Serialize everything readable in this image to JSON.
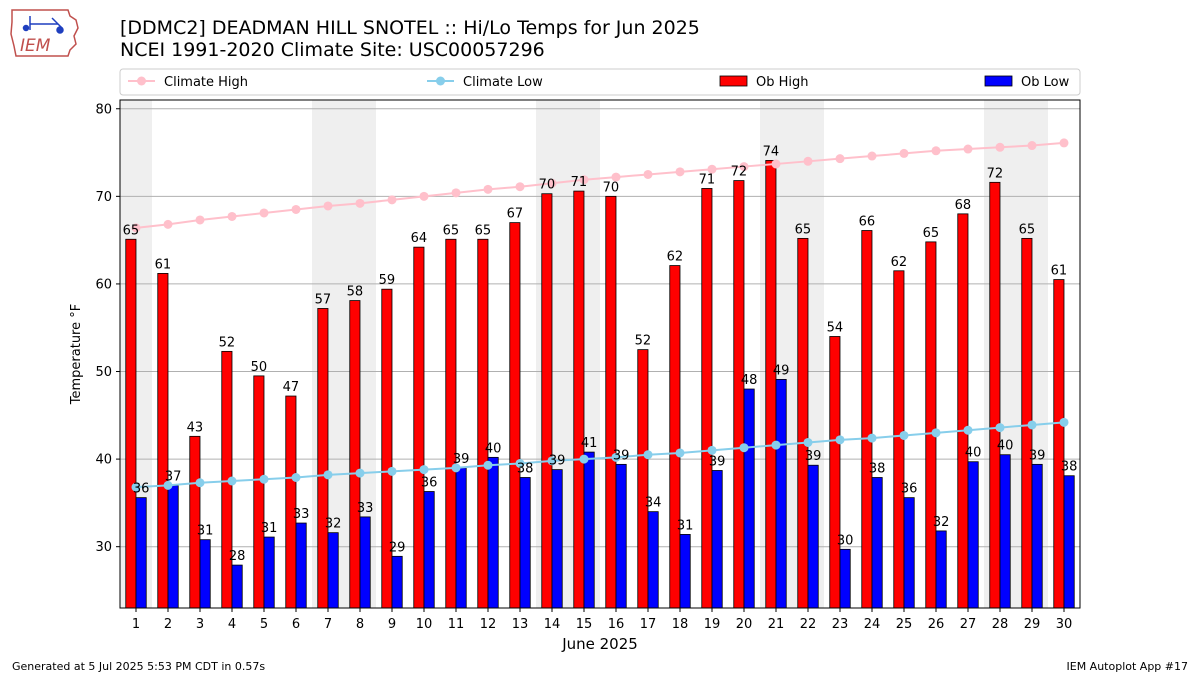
{
  "header": {
    "logo_text": "IEM",
    "title_line1": "[DDMC2] DEADMAN HILL SNOTEL :: Hi/Lo Temps for Jun 2025",
    "title_line2": "NCEI 1991-2020 Climate Site: USC00057296"
  },
  "footer": {
    "generated": "Generated at 5 Jul 2025 5:53 PM CDT in 0.57s",
    "app": "IEM Autoplot App #17"
  },
  "colors": {
    "ob_high": "#ff0000",
    "ob_low": "#0000ff",
    "climate_high": "#ffc0cb",
    "climate_low": "#87ceeb",
    "weekend_shade": "#efefef",
    "grid": "#b0b0b0"
  },
  "chart_data": {
    "type": "bar",
    "xlabel": "June 2025",
    "ylabel": "Temperature °F",
    "ylim": [
      23,
      81
    ],
    "yticks": [
      30,
      40,
      50,
      60,
      70,
      80
    ],
    "grid": "horizontal",
    "legend_position": "top",
    "categories": [
      "1",
      "2",
      "3",
      "4",
      "5",
      "6",
      "7",
      "8",
      "9",
      "10",
      "11",
      "12",
      "13",
      "14",
      "15",
      "16",
      "17",
      "18",
      "19",
      "20",
      "21",
      "22",
      "23",
      "24",
      "25",
      "26",
      "27",
      "28",
      "29",
      "30"
    ],
    "shaded_days": [
      [
        1,
        1
      ],
      [
        7,
        8
      ],
      [
        14,
        15
      ],
      [
        21,
        22
      ],
      [
        28,
        29
      ]
    ],
    "series": [
      {
        "name": "Climate High",
        "kind": "line",
        "values": [
          66.4,
          66.8,
          67.3,
          67.7,
          68.1,
          68.5,
          68.9,
          69.2,
          69.6,
          70.0,
          70.4,
          70.8,
          71.1,
          71.5,
          71.9,
          72.2,
          72.5,
          72.8,
          73.1,
          73.4,
          73.7,
          74.0,
          74.3,
          74.6,
          74.9,
          75.2,
          75.4,
          75.6,
          75.8,
          76.1
        ]
      },
      {
        "name": "Climate Low",
        "kind": "line",
        "values": [
          36.8,
          37.0,
          37.3,
          37.5,
          37.7,
          37.9,
          38.2,
          38.4,
          38.6,
          38.8,
          39.0,
          39.3,
          39.5,
          39.8,
          40.0,
          40.2,
          40.5,
          40.7,
          41.0,
          41.3,
          41.6,
          41.9,
          42.2,
          42.4,
          42.7,
          43.0,
          43.3,
          43.6,
          43.9,
          44.2
        ]
      },
      {
        "name": "Ob High",
        "kind": "bar",
        "values": [
          65,
          61,
          43,
          52,
          50,
          47,
          57,
          58,
          59,
          64,
          65,
          65,
          67,
          70,
          71,
          70,
          52,
          62,
          71,
          72,
          74,
          65,
          54,
          66,
          62,
          65,
          68,
          72,
          65,
          61
        ],
        "plot_values": [
          65.1,
          61.2,
          42.6,
          52.3,
          49.5,
          47.2,
          57.2,
          58.1,
          59.4,
          64.2,
          65.1,
          65.1,
          67.0,
          70.3,
          70.6,
          70.0,
          52.5,
          62.1,
          70.9,
          71.8,
          74.1,
          65.2,
          54.0,
          66.1,
          61.5,
          64.8,
          68.0,
          71.6,
          65.2,
          60.5
        ]
      },
      {
        "name": "Ob Low",
        "kind": "bar",
        "values": [
          36,
          37,
          31,
          28,
          31,
          33,
          32,
          33,
          29,
          36,
          39,
          40,
          38,
          39,
          41,
          39,
          34,
          31,
          39,
          48,
          49,
          39,
          30,
          38,
          36,
          32,
          40,
          40,
          39,
          38
        ],
        "plot_values": [
          35.6,
          37.0,
          30.8,
          27.9,
          31.1,
          32.7,
          31.6,
          33.4,
          28.9,
          36.3,
          39.0,
          40.2,
          37.9,
          38.8,
          40.8,
          39.4,
          34.0,
          31.4,
          38.7,
          48.0,
          49.1,
          39.3,
          29.7,
          37.9,
          35.6,
          31.8,
          39.7,
          40.5,
          39.4,
          38.1
        ]
      }
    ]
  }
}
